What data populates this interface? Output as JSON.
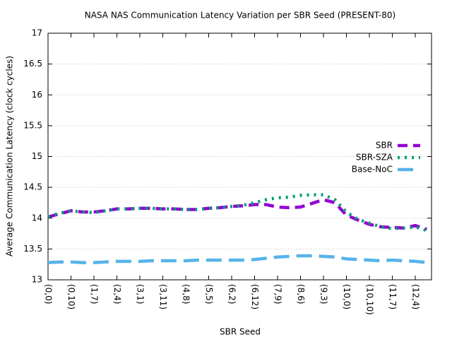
{
  "chart_data": {
    "type": "line",
    "title": "NASA NAS Communication Latency Variation per SBR Seed (PRESENT-80)",
    "x_label": "SBR Seed",
    "y_label": "Average Communication Latency (clock cycles)",
    "categories": [
      "(0,0)",
      null,
      "(0,10)",
      null,
      "(1,7)",
      null,
      "(2,4)",
      null,
      "(3,1)",
      null,
      "(3,11)",
      null,
      "(4,8)",
      null,
      "(5,5)",
      null,
      "(6,2)",
      null,
      "(6,12)",
      null,
      "(7,9)",
      null,
      "(8,6)",
      null,
      "(9,3)",
      null,
      "(10,0)",
      null,
      "(10,10)",
      null,
      "(11,7)",
      null,
      "(12,4)",
      null
    ],
    "series": [
      {
        "name": "SBR",
        "color": "#9400d3",
        "dash": "dashed",
        "values": [
          14.02,
          14.07,
          14.12,
          14.1,
          14.1,
          14.12,
          14.15,
          14.15,
          14.16,
          14.16,
          14.15,
          14.15,
          14.14,
          14.14,
          14.16,
          14.17,
          14.19,
          14.2,
          14.22,
          14.22,
          14.18,
          14.17,
          14.18,
          14.24,
          14.3,
          14.25,
          14.05,
          13.97,
          13.9,
          13.86,
          13.85,
          13.84,
          13.88,
          13.82
        ]
      },
      {
        "name": "SBR-SZA",
        "color": "#009e73",
        "dash": "dotted",
        "values": [
          14.02,
          14.08,
          14.12,
          14.1,
          14.09,
          14.12,
          14.15,
          14.15,
          14.16,
          14.16,
          14.15,
          14.15,
          14.14,
          14.14,
          14.16,
          14.17,
          14.19,
          14.21,
          14.25,
          14.3,
          14.33,
          14.34,
          14.37,
          14.38,
          14.38,
          14.3,
          14.1,
          13.98,
          13.92,
          13.86,
          13.83,
          13.84,
          13.86,
          13.8
        ]
      },
      {
        "name": "Base-NoC",
        "color": "#56b4e9",
        "dash": "longdash",
        "values": [
          13.28,
          13.29,
          13.29,
          13.28,
          13.28,
          13.29,
          13.3,
          13.3,
          13.3,
          13.31,
          13.31,
          13.31,
          13.31,
          13.32,
          13.32,
          13.32,
          13.32,
          13.32,
          13.33,
          13.35,
          13.37,
          13.38,
          13.39,
          13.39,
          13.38,
          13.37,
          13.34,
          13.33,
          13.32,
          13.31,
          13.32,
          13.31,
          13.3,
          13.28
        ]
      }
    ],
    "ylim": [
      13,
      17
    ],
    "yticks": [
      13,
      13.5,
      14,
      14.5,
      15,
      15.5,
      16,
      16.5,
      17
    ],
    "grid": true,
    "legend": "right"
  }
}
